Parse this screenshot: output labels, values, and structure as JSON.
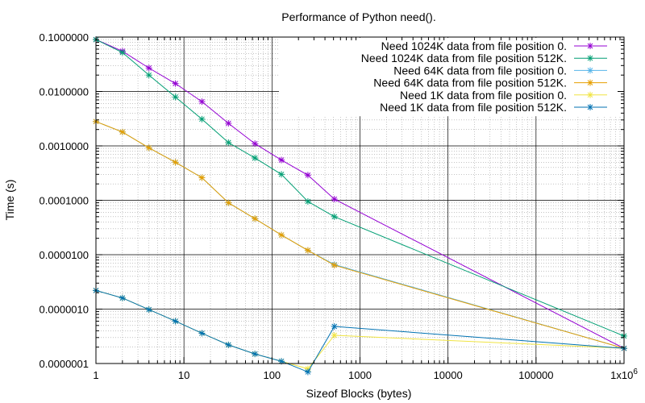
{
  "chart_data": {
    "type": "line",
    "title": "Performance of Python need().",
    "xlabel": "Sizeof Blocks (bytes)",
    "ylabel": "Time (s)",
    "xscale": "log",
    "yscale": "log",
    "xlim": [
      1,
      1000000
    ],
    "ylim": [
      1e-07,
      0.1
    ],
    "grid": true,
    "legend_position": "top-right",
    "x_ticks": [
      {
        "value": 1,
        "label": "1"
      },
      {
        "value": 10,
        "label": "10"
      },
      {
        "value": 100,
        "label": "100"
      },
      {
        "value": 1000,
        "label": "1000"
      },
      {
        "value": 10000,
        "label": "10000"
      },
      {
        "value": 100000,
        "label": "100000"
      }
    ],
    "x_last_tick": {
      "value": 1000000,
      "label": "1x10",
      "superscript": "6"
    },
    "y_ticks": [
      {
        "value": 0.1,
        "label": "0.1000000"
      },
      {
        "value": 0.01,
        "label": "0.0100000"
      },
      {
        "value": 0.001,
        "label": "0.0010000"
      },
      {
        "value": 0.0001,
        "label": "0.0001000"
      },
      {
        "value": 1e-05,
        "label": "0.0000100"
      },
      {
        "value": 1e-06,
        "label": "0.0000010"
      },
      {
        "value": 1e-07,
        "label": "0.0000001"
      }
    ],
    "series": [
      {
        "name": "Need 1024K data from file position 0.",
        "color": "#9400d3",
        "x": [
          1,
          2,
          4,
          8,
          16,
          32,
          64,
          128,
          256,
          512,
          1000000
        ],
        "y": [
          0.09,
          0.055,
          0.027,
          0.014,
          0.0065,
          0.0026,
          0.0011,
          0.00055,
          0.00029,
          0.000105,
          1.9e-07
        ]
      },
      {
        "name": "Need 1024K data from file position 512K.",
        "color": "#009e73",
        "x": [
          1,
          2,
          4,
          8,
          16,
          32,
          64,
          128,
          256,
          512,
          1000000
        ],
        "y": [
          0.09,
          0.052,
          0.02,
          0.0079,
          0.0031,
          0.00115,
          0.0006,
          0.0003,
          9.5e-05,
          5e-05,
          3.2e-07
        ]
      },
      {
        "name": "Need 64K data from file position 0.",
        "color": "#56b4e9",
        "x": [
          1,
          2,
          4,
          8,
          16,
          32,
          64,
          128,
          256,
          512,
          1000000
        ],
        "y": [
          0.0028,
          0.0018,
          0.00092,
          0.0005,
          0.00026,
          9e-05,
          4.6e-05,
          2.3e-05,
          1.2e-05,
          6.6e-06,
          1.9e-07
        ]
      },
      {
        "name": "Need 64K data from file position 512K.",
        "color": "#e69f00",
        "x": [
          1,
          2,
          4,
          8,
          16,
          32,
          64,
          128,
          256,
          512,
          1000000
        ],
        "y": [
          0.0028,
          0.0018,
          0.00092,
          0.0005,
          0.00026,
          9e-05,
          4.6e-05,
          2.3e-05,
          1.2e-05,
          6.4e-06,
          1.9e-07
        ]
      },
      {
        "name": "Need 1K data from file position 0.",
        "color": "#f0e442",
        "x": [
          1,
          2,
          4,
          8,
          16,
          32,
          64,
          128,
          256,
          512,
          1000000
        ],
        "y": [
          2.2e-06,
          1.6e-06,
          9.8e-07,
          6e-07,
          3.6e-07,
          2.2e-07,
          1.5e-07,
          1.1e-07,
          8e-08,
          3.3e-07,
          1.9e-07
        ]
      },
      {
        "name": "Need 1K data from file position 512K.",
        "color": "#0072b2",
        "x": [
          1,
          2,
          4,
          8,
          16,
          32,
          64,
          128,
          256,
          512,
          1000000
        ],
        "y": [
          2.2e-06,
          1.6e-06,
          9.8e-07,
          6e-07,
          3.6e-07,
          2.2e-07,
          1.5e-07,
          1.1e-07,
          7e-08,
          4.8e-07,
          1.9e-07
        ]
      }
    ]
  }
}
